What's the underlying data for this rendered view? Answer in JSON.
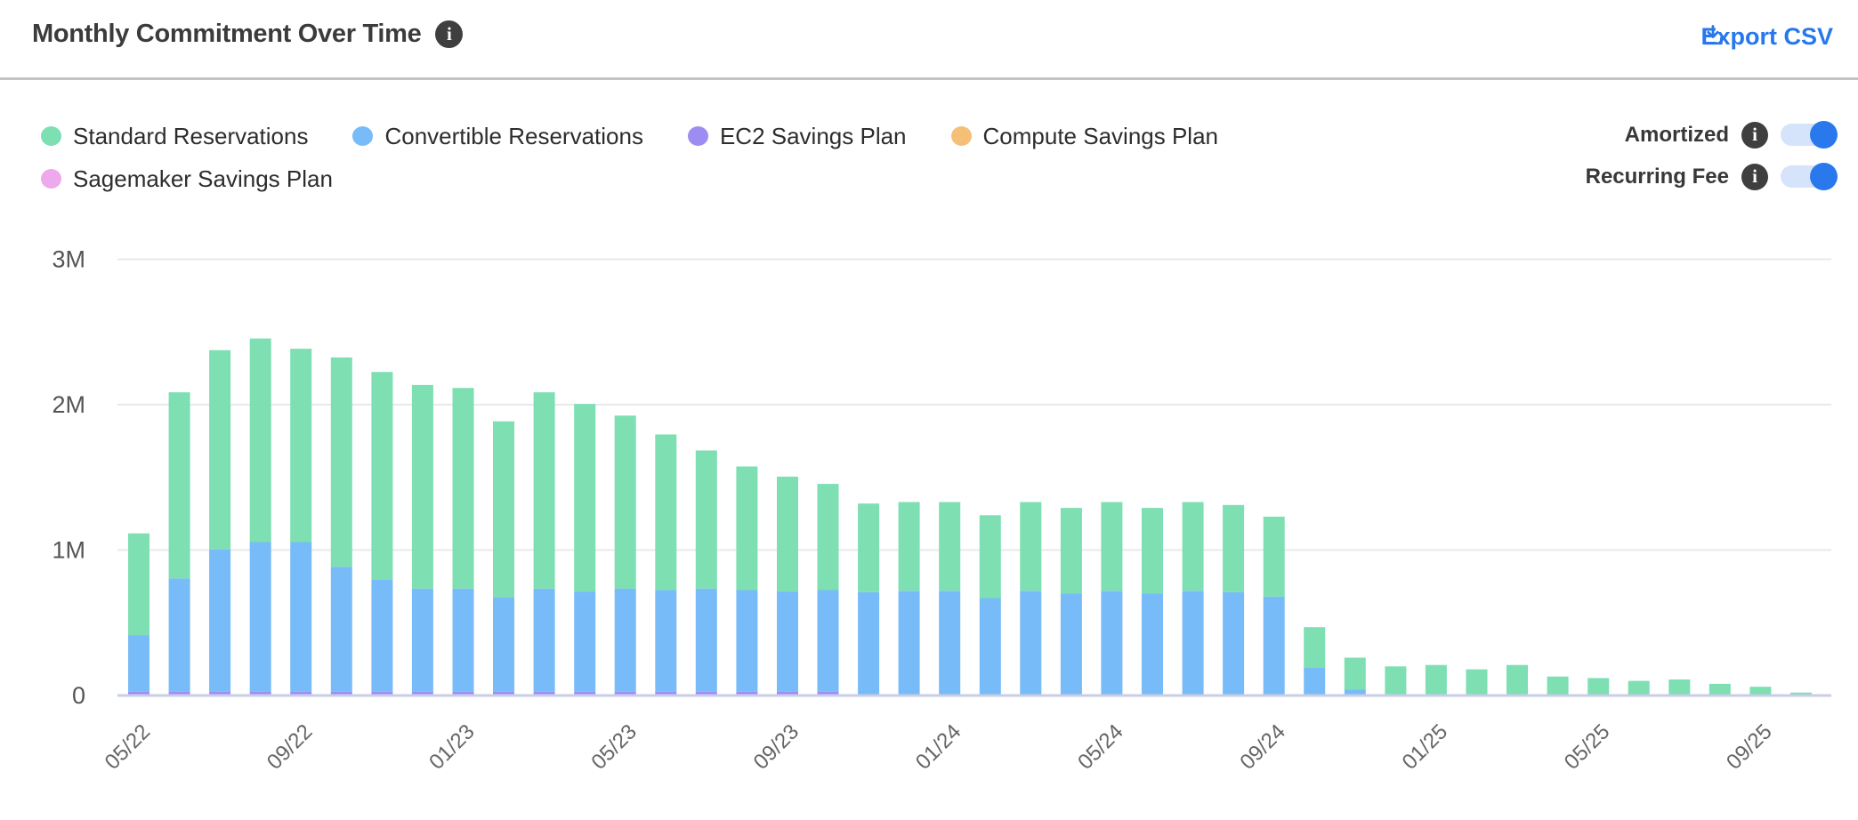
{
  "header": {
    "title": "Monthly Commitment Over Time",
    "export_label": "Export CSV"
  },
  "controls": {
    "toggles": [
      {
        "label": "Amortized",
        "state": "on"
      },
      {
        "label": "Recurring Fee",
        "state": "on"
      }
    ]
  },
  "colors": {
    "accent_blue": "#2678ec",
    "toggle_track": "#d5e4fa",
    "toggle_knob": "#2a79ec",
    "info_icon_bg": "#3f3f3f",
    "gridline": "#e9e9e9",
    "axis_line": "#c8cee6",
    "y_tick_text": "#555555",
    "x_tick_text": "#666666",
    "title_text": "#3b3b3b",
    "legend_text": "#2d2d2d"
  },
  "chart_data": {
    "type": "bar",
    "stacked": true,
    "title": "Monthly Commitment Over Time",
    "unit": "M",
    "grid": true,
    "legend_position": "top-left",
    "ylim": [
      0,
      3.6
    ],
    "y_ticks": [
      {
        "value": 0,
        "label": "0"
      },
      {
        "value": 1,
        "label": "1M"
      },
      {
        "value": 2,
        "label": "2M"
      },
      {
        "value": 3,
        "label": "3M"
      }
    ],
    "categories": [
      "05/22",
      "06/22",
      "07/22",
      "08/22",
      "09/22",
      "10/22",
      "11/22",
      "12/22",
      "01/23",
      "02/23",
      "03/23",
      "04/23",
      "05/23",
      "06/23",
      "07/23",
      "08/23",
      "09/23",
      "10/23",
      "11/23",
      "12/23",
      "01/24",
      "02/24",
      "03/24",
      "04/24",
      "05/24",
      "06/24",
      "07/24",
      "08/24",
      "09/24",
      "10/24",
      "11/24",
      "12/24",
      "01/25",
      "02/25",
      "03/25",
      "04/25",
      "05/25",
      "06/25",
      "07/25",
      "08/25",
      "09/25",
      "10/25"
    ],
    "x_tick_labels": [
      "05/22",
      "09/22",
      "01/23",
      "05/23",
      "09/23",
      "01/24",
      "05/24",
      "09/24",
      "01/25",
      "05/25",
      "09/25"
    ],
    "series": [
      {
        "name": "Standard Reservations",
        "color": "#7ddfb2",
        "values": [
          0.7,
          1.28,
          1.37,
          1.4,
          1.33,
          1.44,
          1.43,
          1.4,
          1.38,
          1.21,
          1.35,
          1.29,
          1.19,
          1.07,
          0.95,
          0.85,
          0.79,
          0.73,
          0.61,
          0.61,
          0.61,
          0.57,
          0.61,
          0.59,
          0.61,
          0.59,
          0.61,
          0.6,
          0.55,
          0.28,
          0.22,
          0.2,
          0.21,
          0.18,
          0.21,
          0.13,
          0.12,
          0.1,
          0.11,
          0.08,
          0.06,
          0.02
        ]
      },
      {
        "name": "Convertible Reservations",
        "color": "#77bcf8",
        "values": [
          0.39,
          0.78,
          0.98,
          1.03,
          1.03,
          0.86,
          0.77,
          0.71,
          0.71,
          0.65,
          0.71,
          0.69,
          0.71,
          0.7,
          0.71,
          0.7,
          0.69,
          0.7,
          0.71,
          0.72,
          0.72,
          0.67,
          0.72,
          0.7,
          0.72,
          0.7,
          0.72,
          0.71,
          0.68,
          0.19,
          0.04,
          0,
          0,
          0,
          0,
          0,
          0,
          0,
          0,
          0,
          0,
          0
        ]
      },
      {
        "name": "EC2 Savings Plan",
        "color": "#9d8df2",
        "values": [
          0.025,
          0.025,
          0.025,
          0.025,
          0.025,
          0.025,
          0.025,
          0.025,
          0.025,
          0.025,
          0.025,
          0.025,
          0.025,
          0.025,
          0.025,
          0.025,
          0.025,
          0.025,
          0,
          0,
          0,
          0,
          0,
          0,
          0,
          0,
          0,
          0,
          0,
          0,
          0,
          0,
          0,
          0,
          0,
          0,
          0,
          0,
          0,
          0,
          0,
          0
        ]
      },
      {
        "name": "Compute Savings Plan",
        "color": "#f4c078",
        "values": [
          0,
          0,
          0,
          0,
          0,
          0,
          0,
          0,
          0,
          0,
          0,
          0,
          0,
          0,
          0,
          0,
          0,
          0,
          0,
          0,
          0,
          0,
          0,
          0,
          0,
          0,
          0,
          0,
          0,
          0,
          0,
          0,
          0,
          0,
          0,
          0,
          0,
          0,
          0,
          0,
          0,
          0
        ]
      },
      {
        "name": "Sagemaker Savings Plan",
        "color": "#eda9ec",
        "values": [
          0,
          0,
          0,
          0,
          0,
          0,
          0,
          0,
          0,
          0,
          0,
          0,
          0,
          0,
          0,
          0,
          0,
          0,
          0,
          0,
          0,
          0,
          0,
          0,
          0,
          0,
          0,
          0,
          0,
          0,
          0,
          0,
          0,
          0,
          0,
          0,
          0,
          0,
          0,
          0,
          0,
          0
        ]
      }
    ]
  }
}
